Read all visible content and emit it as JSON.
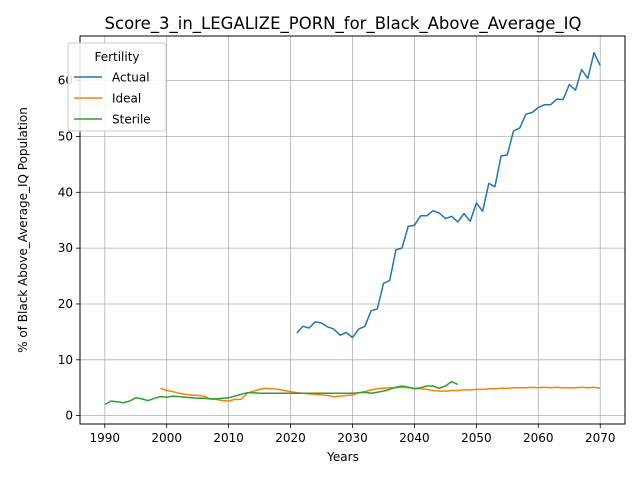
{
  "chart_data": {
    "type": "line",
    "title": "Score_3_in_LEGALIZE_PORN_for_Black_Above_Average_IQ",
    "xlabel": "Years",
    "ylabel": "% of Black Above_Average_IQ Population",
    "xlim": [
      1986,
      2074
    ],
    "ylim": [
      -1.5,
      68
    ],
    "xticks": [
      1990,
      2000,
      2010,
      2020,
      2030,
      2040,
      2050,
      2060,
      2070
    ],
    "yticks": [
      0,
      10,
      20,
      30,
      40,
      50,
      60
    ],
    "grid": true,
    "legend": {
      "title": "Fertility",
      "placement": "top-left"
    },
    "series": [
      {
        "name": "Actual",
        "color": "#1f77b4",
        "x": [
          2021,
          2022,
          2023,
          2024,
          2025,
          2026,
          2027,
          2028,
          2029,
          2030,
          2031,
          2032,
          2033,
          2034,
          2035,
          2036,
          2037,
          2038,
          2039,
          2040,
          2041,
          2042,
          2043,
          2044,
          2045,
          2046,
          2047,
          2048,
          2049,
          2050,
          2051,
          2052,
          2053,
          2054,
          2055,
          2056,
          2057,
          2058,
          2059,
          2060,
          2061,
          2062,
          2063,
          2064,
          2065,
          2066,
          2067,
          2068,
          2069,
          2070
        ],
        "y": [
          14.8,
          16.0,
          15.7,
          16.8,
          16.6,
          15.9,
          15.5,
          14.4,
          14.9,
          14.0,
          15.5,
          16.0,
          18.8,
          19.1,
          23.7,
          24.2,
          29.7,
          30.0,
          33.9,
          34.1,
          35.8,
          35.8,
          36.7,
          36.3,
          35.3,
          35.7,
          34.7,
          36.2,
          34.8,
          38.1,
          36.6,
          41.6,
          41.0,
          46.5,
          46.7,
          51.0,
          51.5,
          54.0,
          54.3,
          55.2,
          55.7,
          55.7,
          56.7,
          56.6,
          59.3,
          58.3,
          62.0,
          60.4,
          65.0,
          62.7
        ]
      },
      {
        "name": "Ideal",
        "color": "#ff7f0e",
        "x": [
          1999,
          2000,
          2001,
          2002,
          2003,
          2004,
          2005,
          2006,
          2007,
          2008,
          2009,
          2010,
          2011,
          2012,
          2013,
          2014,
          2015,
          2016,
          2017,
          2018,
          2019,
          2020,
          2021,
          2022,
          2023,
          2024,
          2025,
          2026,
          2027,
          2028,
          2029,
          2030,
          2031,
          2032,
          2033,
          2034,
          2035,
          2036,
          2037,
          2038,
          2039,
          2040,
          2041,
          2042,
          2043,
          2044,
          2045,
          2046,
          2047,
          2048,
          2049,
          2050,
          2051,
          2052,
          2053,
          2054,
          2055,
          2056,
          2057,
          2058,
          2059,
          2060,
          2061,
          2062,
          2063,
          2064,
          2065,
          2066,
          2067,
          2068,
          2069,
          2070
        ],
        "y": [
          4.9,
          4.5,
          4.3,
          4.0,
          3.8,
          3.7,
          3.6,
          3.5,
          3.0,
          2.9,
          2.7,
          2.6,
          2.9,
          2.9,
          4.0,
          4.4,
          4.7,
          4.9,
          4.8,
          4.7,
          4.5,
          4.3,
          4.1,
          4.0,
          3.9,
          3.8,
          3.7,
          3.6,
          3.4,
          3.5,
          3.6,
          3.7,
          4.1,
          4.3,
          4.6,
          4.8,
          4.9,
          5.0,
          5.0,
          5.1,
          5.0,
          4.9,
          4.8,
          4.7,
          4.5,
          4.4,
          4.4,
          4.5,
          4.5,
          4.6,
          4.6,
          4.7,
          4.7,
          4.8,
          4.8,
          4.9,
          4.9,
          5.0,
          5.0,
          5.0,
          5.1,
          5.0,
          5.1,
          5.0,
          5.1,
          5.0,
          5.0,
          5.0,
          5.1,
          5.0,
          5.1,
          4.9
        ]
      },
      {
        "name": "Sterile",
        "color": "#2ca02c",
        "x": [
          1990,
          1991,
          1992,
          1993,
          1994,
          1995,
          1996,
          1997,
          1998,
          1999,
          2000,
          2001,
          2002,
          2003,
          2004,
          2005,
          2006,
          2007,
          2008,
          2009,
          2010,
          2011,
          2012,
          2013,
          2014,
          2015,
          2016,
          2017,
          2018,
          2019,
          2020,
          2021,
          2022,
          2023,
          2024,
          2025,
          2026,
          2027,
          2028,
          2029,
          2030,
          2031,
          2032,
          2033,
          2034,
          2035,
          2036,
          2037,
          2038,
          2039,
          2040,
          2041,
          2042,
          2043,
          2044,
          2045,
          2046,
          2047
        ],
        "y": [
          2.0,
          2.6,
          2.5,
          2.3,
          2.6,
          3.2,
          3.0,
          2.7,
          3.1,
          3.4,
          3.3,
          3.5,
          3.4,
          3.3,
          3.2,
          3.1,
          3.1,
          3.0,
          3.0,
          3.1,
          3.2,
          3.5,
          3.8,
          4.1,
          4.1,
          4.0,
          4.0,
          4.0,
          4.0,
          4.0,
          4.0,
          4.0,
          4.0,
          4.0,
          4.0,
          4.0,
          4.0,
          4.0,
          4.0,
          4.0,
          4.0,
          4.1,
          4.2,
          4.0,
          4.2,
          4.4,
          4.7,
          5.1,
          5.3,
          5.1,
          4.8,
          5.0,
          5.3,
          5.3,
          4.9,
          5.3,
          6.1,
          5.6
        ]
      }
    ]
  }
}
